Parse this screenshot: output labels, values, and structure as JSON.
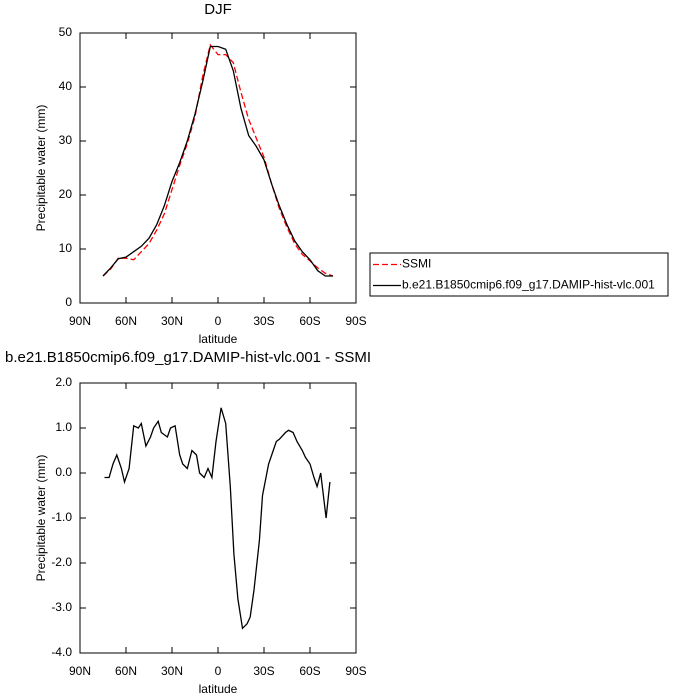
{
  "chart_data": [
    {
      "type": "line",
      "title": "DJF",
      "xlabel": "latitude",
      "ylabel": "Precipitable water (mm)",
      "xlim": [
        90,
        -90
      ],
      "xticks": [
        {
          "value": 90,
          "label": "90N"
        },
        {
          "value": 60,
          "label": "60N"
        },
        {
          "value": 30,
          "label": "30N"
        },
        0,
        {
          "value": -30,
          "label": "30S"
        },
        {
          "value": -60,
          "label": "60S"
        },
        {
          "value": -90,
          "label": "90S"
        }
      ],
      "ylim": [
        0,
        50
      ],
      "yticks": [
        0,
        10,
        20,
        30,
        40,
        50
      ],
      "legend": "right",
      "x": [
        75,
        70,
        65,
        60,
        55,
        50,
        45,
        40,
        35,
        30,
        25,
        20,
        15,
        10,
        5,
        0,
        -5,
        -10,
        -15,
        -20,
        -25,
        -30,
        -35,
        -40,
        -45,
        -50,
        -55,
        -60,
        -65,
        -70,
        -75
      ],
      "series": [
        {
          "name": "SSMI",
          "color": "#ff0000",
          "dash": true,
          "values": [
            5,
            6.3,
            8.3,
            8.3,
            8,
            9.5,
            11,
            13.5,
            16.5,
            21,
            25.5,
            29.5,
            34.5,
            42,
            47.8,
            46,
            46,
            44.5,
            39,
            34,
            30.5,
            27,
            22,
            17.5,
            14,
            11,
            9,
            7.8,
            6.5,
            5.5,
            5
          ]
        },
        {
          "name": "b.e21.B1850cmip6.f09_g17.DAMIP-hist-vlc.001",
          "color": "#000000",
          "dash": false,
          "values": [
            5,
            6.5,
            8.2,
            8.5,
            9.5,
            10.5,
            12,
            14.5,
            18,
            22.5,
            26,
            30,
            35,
            41,
            47.5,
            47.5,
            47,
            43,
            36,
            31,
            29,
            26.5,
            22,
            18,
            14.5,
            11.5,
            9.5,
            8,
            6,
            5,
            5
          ]
        }
      ]
    },
    {
      "type": "line",
      "title": "b.e21.B1850cmip6.f09_g17.DAMIP-hist-vlc.001 - SSMI",
      "xlabel": "latitude",
      "ylabel": "Precipitable water (mm)",
      "xlim": [
        90,
        -90
      ],
      "xticks": [
        {
          "value": 90,
          "label": "90N"
        },
        {
          "value": 60,
          "label": "60N"
        },
        {
          "value": 30,
          "label": "30N"
        },
        0,
        {
          "value": -30,
          "label": "30S"
        },
        {
          "value": -60,
          "label": "60S"
        },
        {
          "value": -90,
          "label": "90S"
        }
      ],
      "ylim": [
        -4,
        2
      ],
      "yticks": [
        {
          "value": -4,
          "label": "-4.0"
        },
        {
          "value": -3,
          "label": "-3.0"
        },
        {
          "value": -2,
          "label": "-2.0"
        },
        {
          "value": -1,
          "label": "-1.0"
        },
        {
          "value": 0,
          "label": "0.0"
        },
        {
          "value": 1,
          "label": "1.0"
        },
        {
          "value": 2,
          "label": "2.0"
        }
      ],
      "x": [
        74,
        71,
        68.5,
        66,
        63,
        61,
        58,
        55,
        52,
        50,
        47,
        44,
        42,
        39,
        37,
        33,
        31,
        28,
        25,
        23,
        20,
        17,
        14,
        12,
        9,
        6.5,
        4,
        1.3,
        -2,
        -5,
        -8,
        -10.4,
        -13,
        -16,
        -19,
        -21,
        -23.5,
        -27,
        -29,
        -33,
        -35,
        -38,
        -40,
        -44,
        -46,
        -49,
        -51.5,
        -55,
        -57,
        -60,
        -62.6,
        -64.6,
        -67,
        -70.5,
        -73
      ],
      "series": [
        {
          "color": "#000000",
          "values": [
            -0.1,
            -0.1,
            0.2,
            0.4,
            0.1,
            -0.2,
            0.1,
            1.05,
            1.0,
            1.1,
            0.6,
            0.8,
            1.0,
            1.15,
            0.9,
            0.8,
            1.0,
            1.05,
            0.4,
            0.2,
            0.1,
            0.5,
            0.4,
            0.0,
            -0.1,
            0.1,
            -0.1,
            0.7,
            1.45,
            1.1,
            -0.3,
            -1.8,
            -2.8,
            -3.45,
            -3.35,
            -3.2,
            -2.6,
            -1.5,
            -0.5,
            0.2,
            0.4,
            0.7,
            0.75,
            0.9,
            0.95,
            0.9,
            0.7,
            0.5,
            0.35,
            0.2,
            -0.1,
            -0.3,
            0.0,
            -1.0,
            -0.2
          ]
        }
      ]
    }
  ]
}
